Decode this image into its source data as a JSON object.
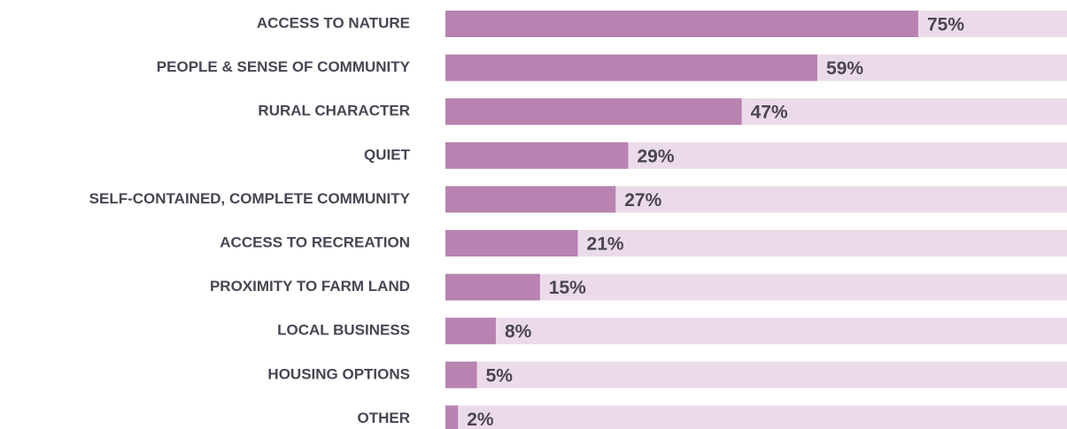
{
  "chart_data": {
    "type": "bar",
    "orientation": "horizontal",
    "categories": [
      "ACCESS TO NATURE",
      "PEOPLE & SENSE OF COMMUNITY",
      "RURAL CHARACTER",
      "QUIET",
      "SELF-CONTAINED, COMPLETE COMMUNITY",
      "ACCESS TO RECREATION",
      "PROXIMITY TO FARM LAND",
      "LOCAL BUSINESS",
      "HOUSING OPTIONS",
      "OTHER"
    ],
    "values": [
      75,
      59,
      47,
      29,
      27,
      21,
      15,
      8,
      5,
      2
    ],
    "value_labels": [
      "75%",
      "59%",
      "47%",
      "29%",
      "27%",
      "21%",
      "15%",
      "8%",
      "5%",
      "2%"
    ],
    "color": "#b883b0",
    "track_color": "#ebdbe9",
    "xlim": [
      0,
      100
    ]
  }
}
